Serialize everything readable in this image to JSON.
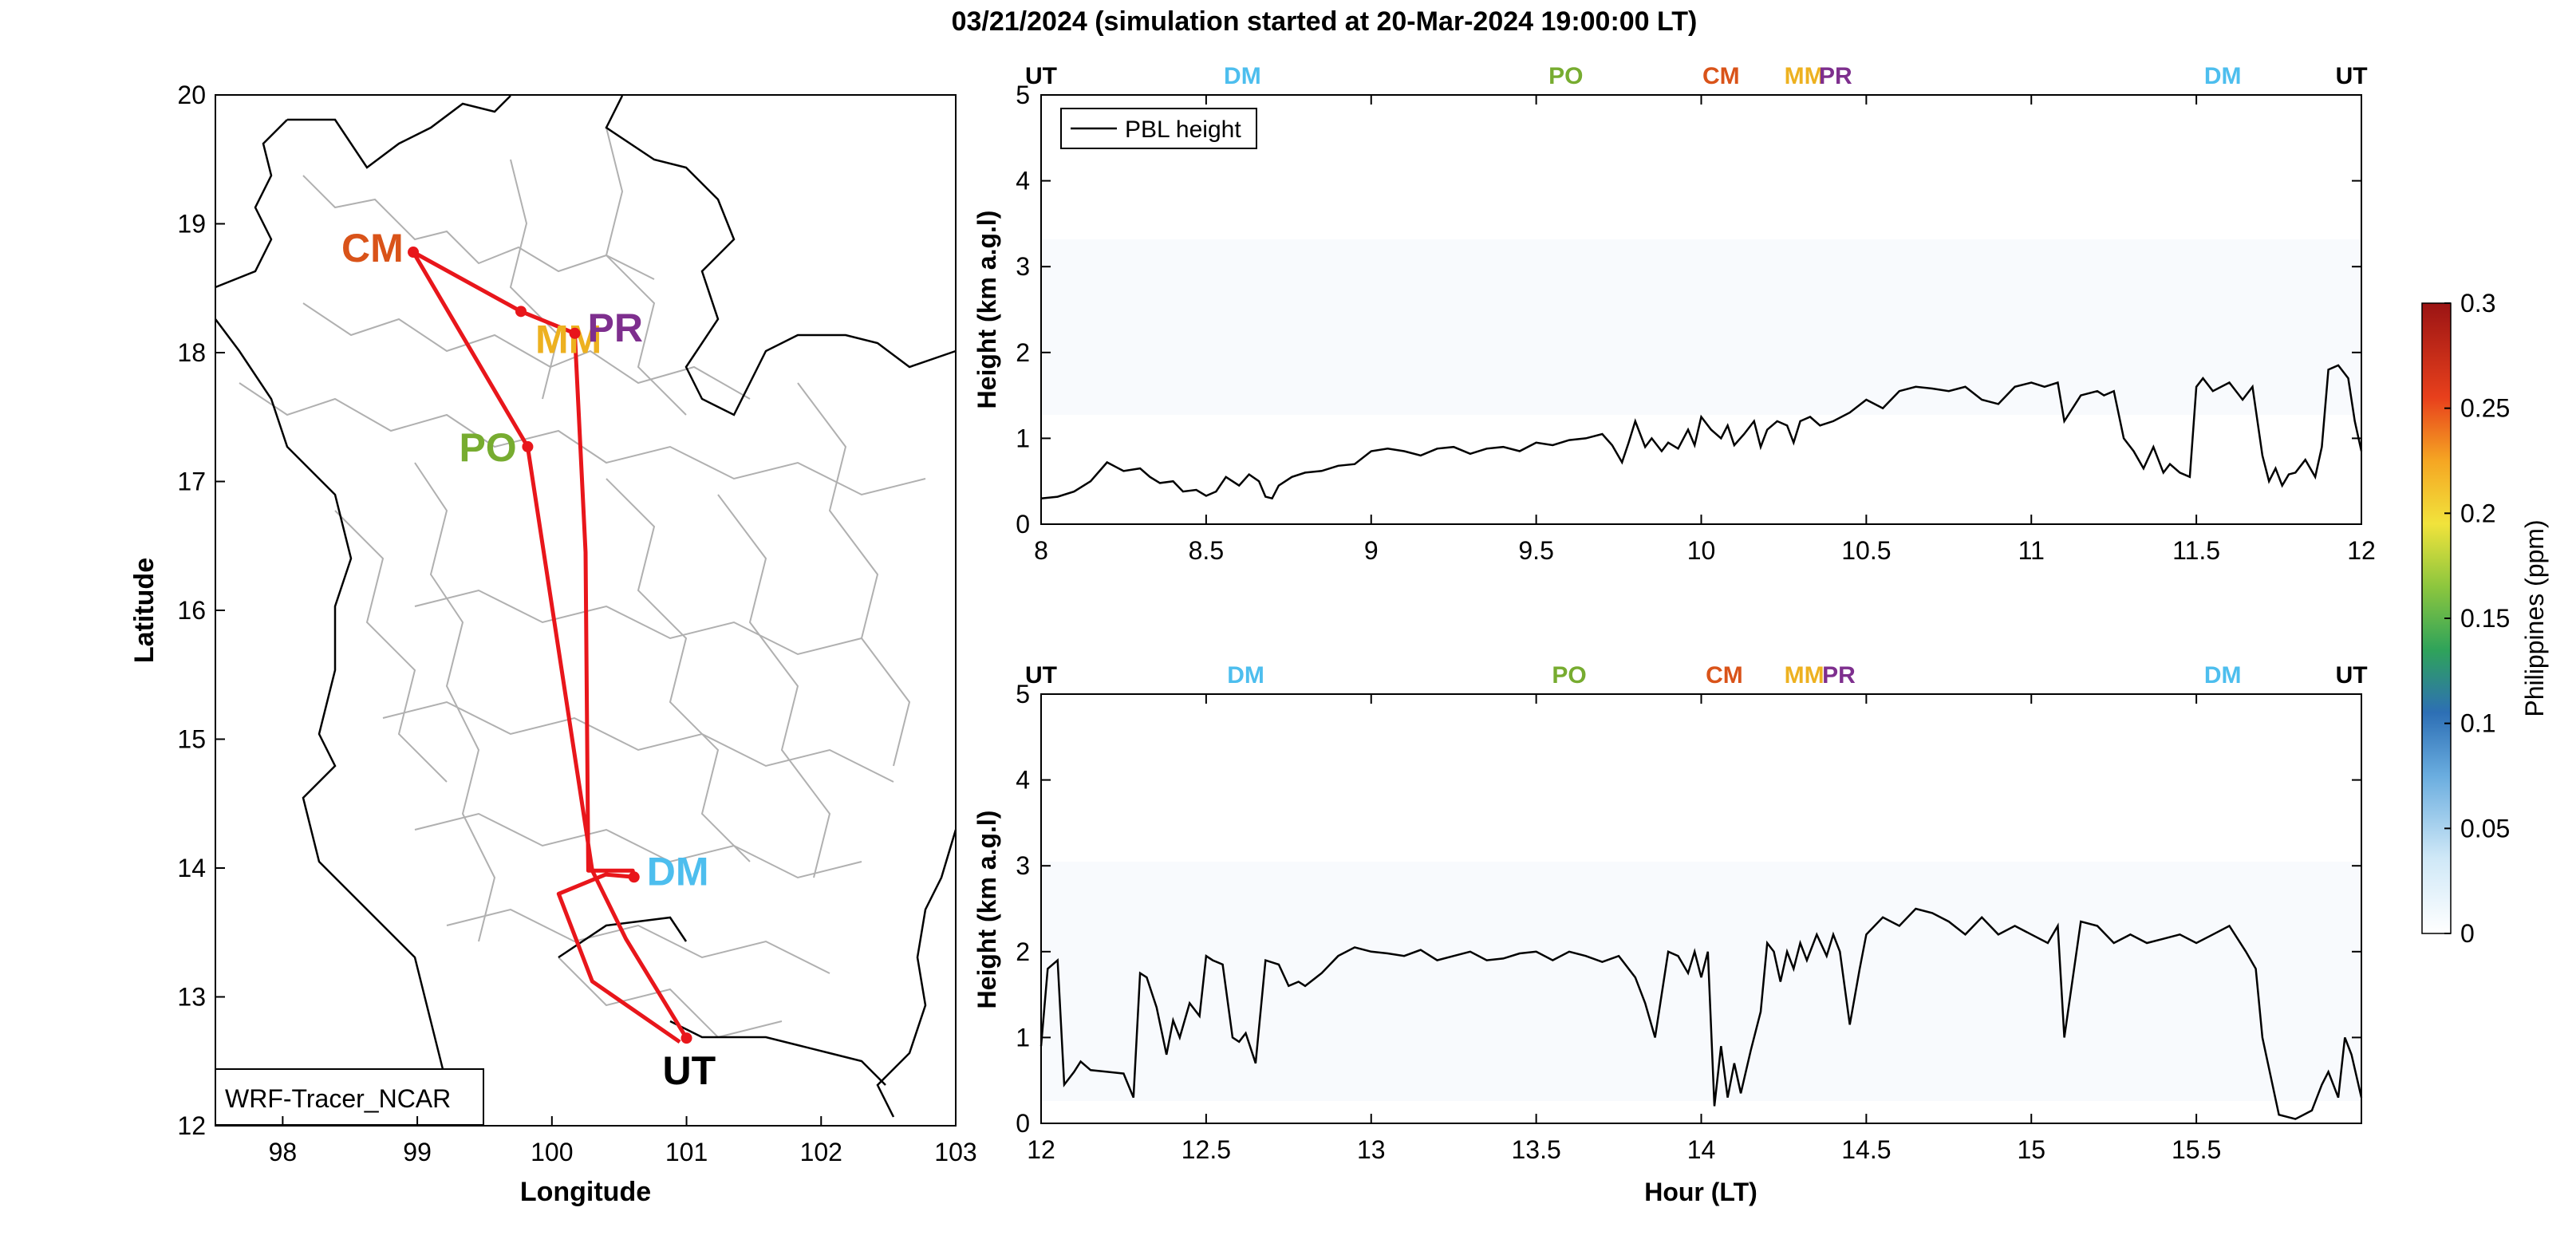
{
  "title": "03/21/2024 (simulation started at 20-Mar-2024 19:00:00 LT)",
  "colors": {
    "track": "#e8161b",
    "CM": "#d95319",
    "MM": "#edb120",
    "PR": "#7e2f8e",
    "PO": "#77ac30",
    "DM": "#4dbeee",
    "UT": "#000000"
  },
  "chart_data": [
    {
      "type": "scatter",
      "panel": "map",
      "xlabel": "Longitude",
      "ylabel": "Latitude",
      "xlim": [
        97.5,
        103
      ],
      "ylim": [
        12,
        20
      ],
      "xticks": [
        "98",
        "99",
        "100",
        "101",
        "102",
        "103"
      ],
      "yticks": [
        "12",
        "13",
        "14",
        "15",
        "16",
        "17",
        "18",
        "19",
        "20"
      ],
      "grid": false,
      "annotation": "WRF-Tracer_NCAR",
      "stations": [
        {
          "name": "CM",
          "lon": 98.97,
          "lat": 18.78
        },
        {
          "name": "MM",
          "lon": 99.77,
          "lat": 18.32
        },
        {
          "name": "PR",
          "lon": 100.17,
          "lat": 18.15
        },
        {
          "name": "PO",
          "lon": 99.82,
          "lat": 17.27
        },
        {
          "name": "DM",
          "lon": 100.61,
          "lat": 13.93
        },
        {
          "name": "UT",
          "lon": 101.0,
          "lat": 12.68
        }
      ],
      "route_label_order": [
        "UT",
        "DM",
        "PO",
        "CM",
        "MM",
        "PR",
        "DM",
        "UT"
      ],
      "flight_track": [
        [
          101.0,
          12.68
        ],
        [
          100.55,
          13.45
        ],
        [
          100.3,
          13.98
        ],
        [
          99.82,
          17.27
        ],
        [
          98.97,
          18.78
        ],
        [
          99.77,
          18.32
        ],
        [
          100.17,
          18.15
        ],
        [
          100.25,
          16.45
        ],
        [
          100.27,
          13.98
        ],
        [
          100.6,
          13.98
        ],
        [
          100.61,
          13.93
        ],
        [
          100.4,
          13.95
        ],
        [
          100.05,
          13.8
        ],
        [
          100.3,
          13.12
        ],
        [
          100.95,
          12.65
        ]
      ]
    },
    {
      "type": "line",
      "panel": "top",
      "xlabel": "",
      "ylabel": "Height (km a.g.l)",
      "xlim": [
        8,
        12
      ],
      "ylim": [
        0,
        5
      ],
      "xticks": [
        "8",
        "8.5",
        "9",
        "9.5",
        "10",
        "10.5",
        "11",
        "11.5",
        "12"
      ],
      "yticks": [
        "0",
        "1",
        "2",
        "3",
        "4",
        "5"
      ],
      "legend": "top-left",
      "top_markers": [
        {
          "label": "UT",
          "x": 8.0
        },
        {
          "label": "DM",
          "x": 8.61
        },
        {
          "label": "PO",
          "x": 9.59
        },
        {
          "label": "CM",
          "x": 10.06
        },
        {
          "label": "MM",
          "x": 10.3
        },
        {
          "label": "PR",
          "x": 10.4
        },
        {
          "label": "DM",
          "x": 11.58
        },
        {
          "label": "UT",
          "x": 11.97
        }
      ],
      "series": [
        {
          "name": "PBL height",
          "x": [
            8.0,
            8.05,
            8.1,
            8.15,
            8.2,
            8.25,
            8.3,
            8.33,
            8.36,
            8.4,
            8.43,
            8.47,
            8.5,
            8.53,
            8.56,
            8.6,
            8.63,
            8.66,
            8.68,
            8.7,
            8.72,
            8.76,
            8.8,
            8.85,
            8.9,
            8.95,
            9.0,
            9.05,
            9.1,
            9.15,
            9.2,
            9.25,
            9.3,
            9.35,
            9.4,
            9.45,
            9.5,
            9.55,
            9.6,
            9.65,
            9.7,
            9.73,
            9.76,
            9.78,
            9.8,
            9.83,
            9.85,
            9.88,
            9.9,
            9.93,
            9.96,
            9.98,
            10.0,
            10.03,
            10.06,
            10.08,
            10.1,
            10.13,
            10.16,
            10.18,
            10.2,
            10.23,
            10.26,
            10.28,
            10.3,
            10.33,
            10.36,
            10.4,
            10.45,
            10.5,
            10.55,
            10.6,
            10.65,
            10.7,
            10.75,
            10.8,
            10.85,
            10.9,
            10.95,
            11.0,
            11.04,
            11.08,
            11.1,
            11.15,
            11.2,
            11.22,
            11.25,
            11.28,
            11.31,
            11.34,
            11.37,
            11.4,
            11.42,
            11.45,
            11.48,
            11.5,
            11.52,
            11.55,
            11.6,
            11.64,
            11.67,
            11.7,
            11.72,
            11.74,
            11.76,
            11.78,
            11.8,
            11.83,
            11.86,
            11.88,
            11.9,
            11.93,
            11.96,
            11.98,
            12.0
          ],
          "values": [
            0.3,
            0.32,
            0.38,
            0.5,
            0.72,
            0.62,
            0.65,
            0.55,
            0.48,
            0.5,
            0.38,
            0.4,
            0.33,
            0.38,
            0.55,
            0.45,
            0.58,
            0.5,
            0.32,
            0.3,
            0.45,
            0.55,
            0.6,
            0.62,
            0.68,
            0.7,
            0.85,
            0.88,
            0.85,
            0.8,
            0.88,
            0.9,
            0.82,
            0.88,
            0.9,
            0.85,
            0.95,
            0.92,
            0.98,
            1.0,
            1.05,
            0.92,
            0.72,
            0.95,
            1.2,
            0.9,
            1.0,
            0.85,
            0.95,
            0.88,
            1.1,
            0.92,
            1.25,
            1.1,
            1.0,
            1.15,
            0.92,
            1.05,
            1.2,
            0.9,
            1.1,
            1.2,
            1.15,
            0.95,
            1.2,
            1.25,
            1.15,
            1.2,
            1.3,
            1.45,
            1.35,
            1.55,
            1.6,
            1.58,
            1.55,
            1.6,
            1.45,
            1.4,
            1.6,
            1.65,
            1.6,
            1.65,
            1.2,
            1.5,
            1.55,
            1.5,
            1.55,
            1.0,
            0.85,
            0.65,
            0.9,
            0.6,
            0.7,
            0.6,
            0.55,
            1.6,
            1.7,
            1.55,
            1.65,
            1.45,
            1.6,
            0.8,
            0.5,
            0.65,
            0.45,
            0.58,
            0.6,
            0.75,
            0.55,
            0.9,
            1.8,
            1.85,
            1.7,
            1.2,
            0.85
          ]
        }
      ]
    },
    {
      "type": "line",
      "panel": "bottom",
      "xlabel": "Hour (LT)",
      "ylabel": "Height (km a.g.l)",
      "xlim": [
        12,
        16
      ],
      "ylim": [
        0,
        5
      ],
      "xticks": [
        "12",
        "12.5",
        "13",
        "13.5",
        "14",
        "14.5",
        "15",
        "15.5"
      ],
      "yticks": [
        "0",
        "1",
        "2",
        "3",
        "4",
        "5"
      ],
      "top_markers": [
        {
          "label": "UT",
          "x": 12.0
        },
        {
          "label": "DM",
          "x": 12.62
        },
        {
          "label": "PO",
          "x": 13.6
        },
        {
          "label": "CM",
          "x": 14.07
        },
        {
          "label": "MM",
          "x": 14.3
        },
        {
          "label": "PR",
          "x": 14.41
        },
        {
          "label": "DM",
          "x": 15.58
        },
        {
          "label": "UT",
          "x": 15.97
        }
      ],
      "series": [
        {
          "name": "PBL height",
          "x": [
            12.0,
            12.02,
            12.05,
            12.07,
            12.1,
            12.12,
            12.15,
            12.2,
            12.25,
            12.28,
            12.3,
            12.32,
            12.35,
            12.38,
            12.4,
            12.42,
            12.45,
            12.48,
            12.5,
            12.52,
            12.55,
            12.58,
            12.6,
            12.62,
            12.65,
            12.68,
            12.72,
            12.75,
            12.78,
            12.8,
            12.85,
            12.9,
            12.95,
            13.0,
            13.05,
            13.1,
            13.15,
            13.2,
            13.25,
            13.3,
            13.35,
            13.4,
            13.45,
            13.5,
            13.55,
            13.6,
            13.65,
            13.7,
            13.75,
            13.8,
            13.83,
            13.86,
            13.9,
            13.93,
            13.96,
            13.98,
            14.0,
            14.02,
            14.04,
            14.06,
            14.08,
            14.1,
            14.12,
            14.15,
            14.18,
            14.2,
            14.22,
            14.24,
            14.26,
            14.28,
            14.3,
            14.32,
            14.35,
            14.38,
            14.4,
            14.42,
            14.45,
            14.48,
            14.5,
            14.55,
            14.6,
            14.65,
            14.7,
            14.75,
            14.8,
            14.85,
            14.9,
            14.95,
            15.0,
            15.05,
            15.08,
            15.1,
            15.15,
            15.2,
            15.25,
            15.3,
            15.35,
            15.4,
            15.45,
            15.5,
            15.55,
            15.6,
            15.65,
            15.68,
            15.7,
            15.75,
            15.8,
            15.85,
            15.88,
            15.9,
            15.93,
            15.95,
            15.97,
            16.0
          ],
          "values": [
            0.9,
            1.8,
            1.9,
            0.45,
            0.6,
            0.72,
            0.62,
            0.6,
            0.58,
            0.3,
            1.75,
            1.7,
            1.35,
            0.8,
            1.2,
            1.0,
            1.4,
            1.25,
            1.95,
            1.9,
            1.85,
            1.0,
            0.95,
            1.05,
            0.7,
            1.9,
            1.85,
            1.6,
            1.65,
            1.6,
            1.75,
            1.95,
            2.05,
            2.0,
            1.98,
            1.95,
            2.02,
            1.9,
            1.95,
            2.0,
            1.9,
            1.92,
            1.98,
            2.0,
            1.9,
            2.0,
            1.95,
            1.88,
            1.95,
            1.7,
            1.4,
            1.0,
            2.0,
            1.95,
            1.75,
            2.0,
            1.7,
            2.0,
            0.2,
            0.9,
            0.3,
            0.7,
            0.35,
            0.85,
            1.3,
            2.1,
            2.0,
            1.65,
            2.0,
            1.8,
            2.1,
            1.9,
            2.2,
            1.95,
            2.2,
            2.0,
            1.15,
            1.8,
            2.2,
            2.4,
            2.3,
            2.5,
            2.45,
            2.35,
            2.2,
            2.4,
            2.2,
            2.3,
            2.2,
            2.1,
            2.3,
            1.0,
            2.35,
            2.3,
            2.1,
            2.2,
            2.1,
            2.15,
            2.2,
            2.1,
            2.2,
            2.3,
            2.0,
            1.8,
            1.0,
            0.1,
            0.05,
            0.15,
            0.45,
            0.6,
            0.3,
            1.0,
            0.8,
            0.3
          ]
        }
      ]
    },
    {
      "type": "heatmap",
      "panel": "colorbar",
      "label": "Philippines (ppm)",
      "range": [
        0,
        0.3
      ],
      "ticks": [
        "0",
        "0.05",
        "0.1",
        "0.15",
        "0.2",
        "0.25",
        "0.3"
      ]
    }
  ],
  "map_text": {
    "legend_label": "PBL height"
  }
}
